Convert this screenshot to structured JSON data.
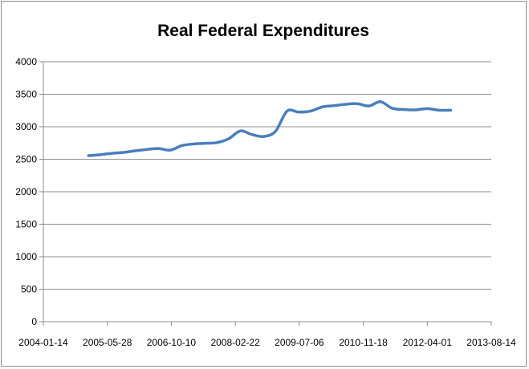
{
  "chart_data": {
    "type": "line",
    "title": "Real Federal Expenditures",
    "xlabel": "",
    "ylabel": "",
    "ylim": [
      0,
      4000
    ],
    "yticks": [
      0,
      500,
      1000,
      1500,
      2000,
      2500,
      3000,
      3500,
      4000
    ],
    "xticks": [
      "2004-01-14",
      "2005-05-28",
      "2006-10-10",
      "2008-02-22",
      "2009-07-06",
      "2010-11-18",
      "2012-04-01",
      "2013-08-14"
    ],
    "grid": true,
    "legend": "none",
    "series": [
      {
        "name": "Real Federal Expenditures",
        "color": "#4a7ebb",
        "x": [
          "2005-01-01",
          "2005-04-01",
          "2005-07-01",
          "2005-10-01",
          "2006-01-01",
          "2006-04-01",
          "2006-07-01",
          "2006-10-01",
          "2007-01-01",
          "2007-04-01",
          "2007-07-01",
          "2007-10-01",
          "2008-01-01",
          "2008-04-01",
          "2008-07-01",
          "2008-10-01",
          "2009-01-01",
          "2009-04-01",
          "2009-07-01",
          "2009-10-01",
          "2010-01-01",
          "2010-04-01",
          "2010-07-01",
          "2010-10-01",
          "2011-01-01",
          "2011-04-01",
          "2011-07-01",
          "2011-10-01",
          "2012-01-01",
          "2012-04-01",
          "2012-07-01",
          "2012-10-01"
        ],
        "values": [
          2555,
          2570,
          2590,
          2605,
          2630,
          2650,
          2665,
          2640,
          2710,
          2735,
          2745,
          2755,
          2815,
          2935,
          2880,
          2850,
          2930,
          3240,
          3225,
          3240,
          3305,
          3325,
          3345,
          3355,
          3320,
          3385,
          3285,
          3265,
          3260,
          3280,
          3255,
          3255
        ]
      }
    ]
  }
}
